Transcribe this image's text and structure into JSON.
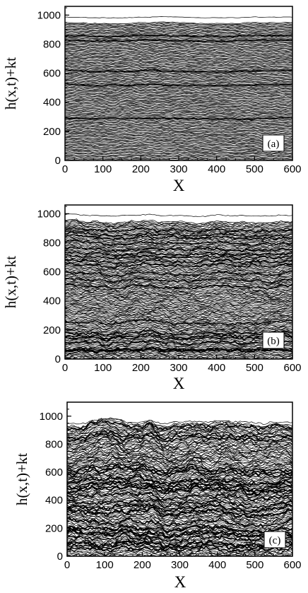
{
  "chart_data": [
    {
      "type": "line",
      "panel_label": "(a)",
      "xlabel": "X",
      "ylabel": "h(x,t)+kt",
      "xlim": [
        0,
        600
      ],
      "ylim": [
        0,
        1060
      ],
      "xticks": [
        "0",
        "100",
        "200",
        "300",
        "400",
        "500",
        "600"
      ],
      "yticks": [
        "0",
        "200",
        "400",
        "600",
        "800",
        "1000"
      ],
      "profiles": {
        "count": 150,
        "time_offset_step": 6.4,
        "roughness": 12,
        "merge_density": 0.06,
        "top_level": 985
      },
      "grid": false,
      "legend": "none"
    },
    {
      "type": "line",
      "panel_label": "(b)",
      "xlabel": "X",
      "ylabel": "h(x,t)+kt",
      "xlim": [
        0,
        600
      ],
      "ylim": [
        0,
        1060
      ],
      "xticks": [
        "0",
        "100",
        "200",
        "300",
        "400",
        "500",
        "600"
      ],
      "yticks": [
        "0",
        "200",
        "400",
        "600",
        "800",
        "1000"
      ],
      "profiles": {
        "count": 150,
        "time_offset_step": 6.4,
        "roughness": 30,
        "merge_density": 0.12,
        "top_level": 990
      },
      "grid": false,
      "legend": "none"
    },
    {
      "type": "line",
      "panel_label": "(c)",
      "xlabel": "X",
      "ylabel": "h(x,t)+kt",
      "xlim": [
        0,
        600
      ],
      "ylim": [
        0,
        1100
      ],
      "xticks": [
        "0",
        "100",
        "200",
        "300",
        "400",
        "500",
        "600"
      ],
      "yticks": [
        "0",
        "200",
        "400",
        "600",
        "800",
        "1000"
      ],
      "profiles": {
        "count": 150,
        "time_offset_step": 6.4,
        "roughness": 55,
        "merge_density": 0.18,
        "top_level": 960
      },
      "grid": false,
      "legend": "none"
    }
  ]
}
